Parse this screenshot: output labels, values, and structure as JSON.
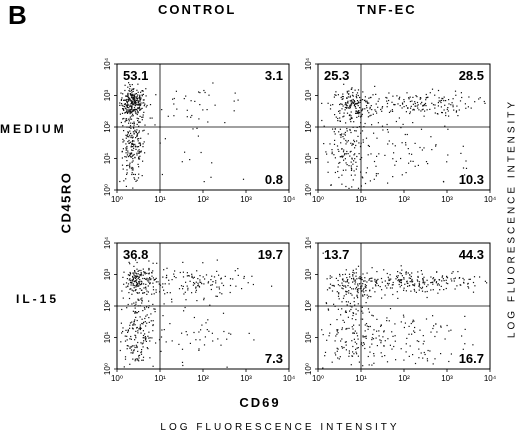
{
  "figure": {
    "panel_letter": "B",
    "col_titles": [
      "CONTROL",
      "TNF-EC"
    ],
    "row_labels": [
      "MEDIUM",
      "IL-15"
    ],
    "y_axis_label": "CD45RO",
    "x_axis_label": "CD69",
    "axis_subtitle": "LOG FLUORESCENCE INTENSITY",
    "right_axis_subtitle": "LOG FLUORESCENCE INTENSITY"
  },
  "chart_data": [
    {
      "type": "scatter",
      "condition": "CONTROL",
      "treatment": "MEDIUM",
      "x_ticks": [
        "10⁰",
        "10¹",
        "10²",
        "10³",
        "10⁴"
      ],
      "y_ticks": [
        "10⁰",
        "10¹",
        "10²",
        "10³",
        "10⁴"
      ],
      "xlim": [
        0,
        4
      ],
      "ylim": [
        0,
        4
      ],
      "gate_x": 1,
      "gate_y": 2,
      "quadrants": {
        "upper_left": "53.1",
        "upper_right": "3.1",
        "lower_right": "0.8"
      }
    },
    {
      "type": "scatter",
      "condition": "TNF-EC",
      "treatment": "MEDIUM",
      "x_ticks": [
        "10⁰",
        "10¹",
        "10²",
        "10³",
        "10⁴"
      ],
      "y_ticks": [
        "10⁰",
        "10¹",
        "10²",
        "10³",
        "10⁴"
      ],
      "xlim": [
        0,
        4
      ],
      "ylim": [
        0,
        4
      ],
      "gate_x": 1,
      "gate_y": 2,
      "quadrants": {
        "upper_left": "25.3",
        "upper_right": "28.5",
        "lower_right": "10.3"
      }
    },
    {
      "type": "scatter",
      "condition": "CONTROL",
      "treatment": "IL-15",
      "x_ticks": [
        "10⁰",
        "10¹",
        "10²",
        "10³",
        "10⁴"
      ],
      "y_ticks": [
        "10⁰",
        "10¹",
        "10²",
        "10³",
        "10⁴"
      ],
      "xlim": [
        0,
        4
      ],
      "ylim": [
        0,
        4
      ],
      "gate_x": 1,
      "gate_y": 2,
      "quadrants": {
        "upper_left": "36.8",
        "upper_right": "19.7",
        "lower_right": "7.3"
      }
    },
    {
      "type": "scatter",
      "condition": "TNF-EC",
      "treatment": "IL-15",
      "x_ticks": [
        "10⁰",
        "10¹",
        "10²",
        "10³",
        "10⁴"
      ],
      "y_ticks": [
        "10⁰",
        "10¹",
        "10²",
        "10³",
        "10⁴"
      ],
      "xlim": [
        0,
        4
      ],
      "ylim": [
        0,
        4
      ],
      "gate_x": 1,
      "gate_y": 2,
      "quadrants": {
        "upper_left": "13.7",
        "upper_right": "44.3",
        "lower_right": "16.7"
      }
    }
  ]
}
